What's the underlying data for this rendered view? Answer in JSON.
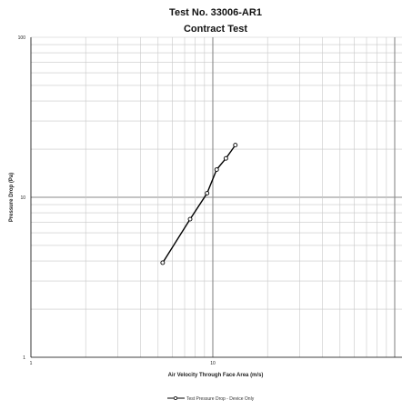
{
  "chart_data": {
    "type": "line",
    "title": "Test No. 33006-AR1",
    "subtitle": "Contract Test",
    "xlabel": "Air Velocity Through Face Area (m/s)",
    "ylabel": "Pressure Drop (Pa)",
    "x_scale": "log",
    "y_scale": "log",
    "xlim": [
      1,
      100
    ],
    "ylim": [
      1,
      100
    ],
    "x_ticks": [
      "1",
      "10"
    ],
    "y_ticks": [
      "100",
      "10",
      "1"
    ],
    "grid": true,
    "legend_position": "bottom-center",
    "series": [
      {
        "name": "Test Pressure Drop - Device Only",
        "color": "#000000",
        "marker": "open-circle",
        "x": [
          5.3,
          7.5,
          9.3,
          10.5,
          11.8,
          13.3
        ],
        "y": [
          3.9,
          7.3,
          10.6,
          14.9,
          17.5,
          21.2
        ]
      }
    ]
  }
}
